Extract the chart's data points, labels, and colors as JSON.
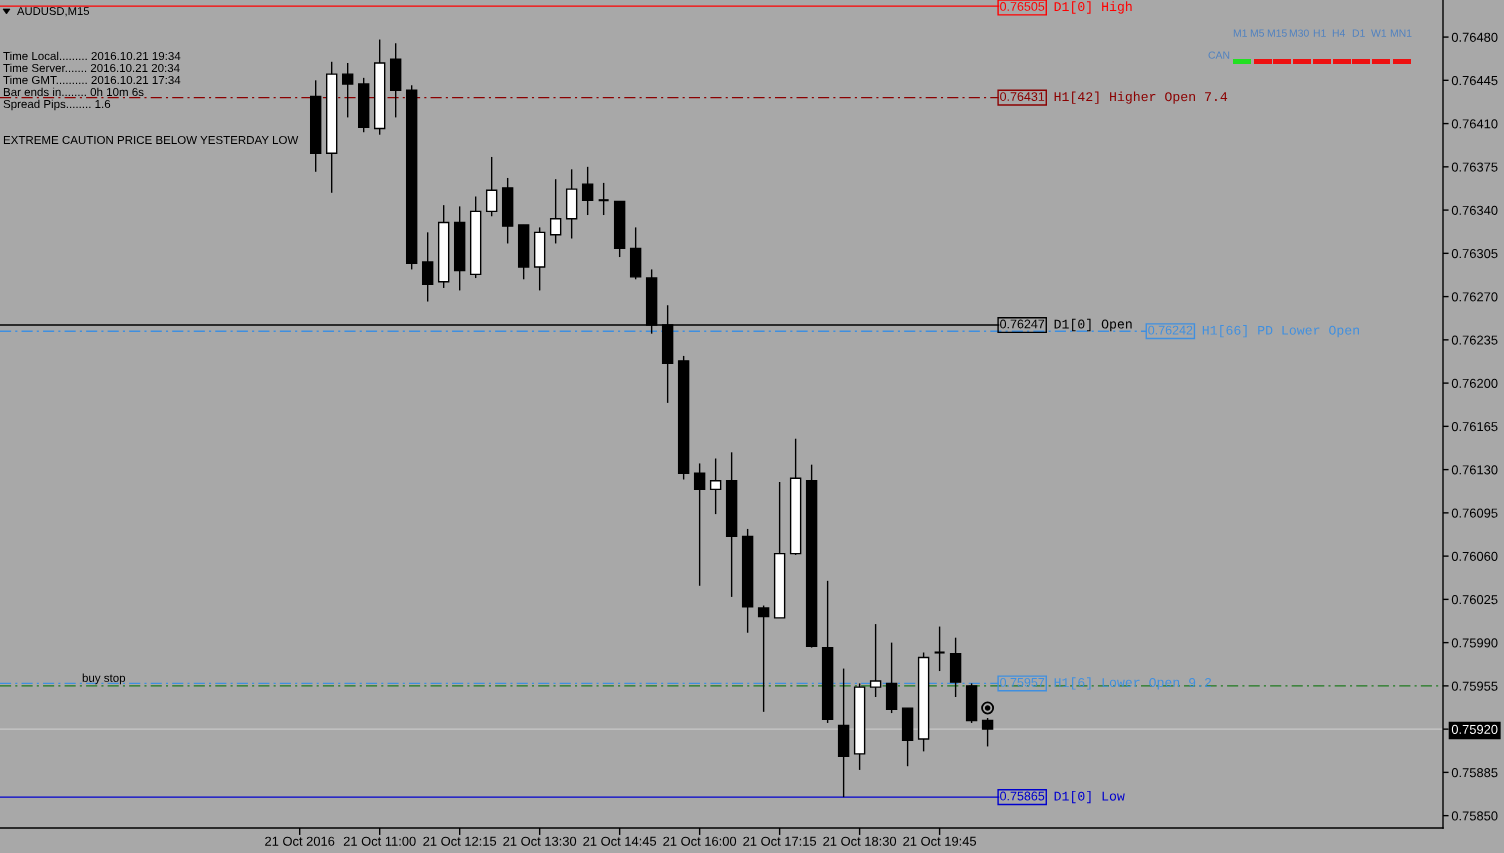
{
  "chart_data": {
    "type": "candlestick",
    "title": "AUDUSD,M15",
    "x": [
      "2016-10-21T10:00",
      "2016-10-21T10:15",
      "2016-10-21T10:30",
      "2016-10-21T10:45",
      "2016-10-21T11:00",
      "2016-10-21T11:15",
      "2016-10-21T11:30",
      "2016-10-21T11:45",
      "2016-10-21T12:00",
      "2016-10-21T12:15",
      "2016-10-21T12:30",
      "2016-10-21T12:45",
      "2016-10-21T13:00",
      "2016-10-21T13:15",
      "2016-10-21T13:30",
      "2016-10-21T13:45",
      "2016-10-21T14:00",
      "2016-10-21T14:15",
      "2016-10-21T14:30",
      "2016-10-21T14:45",
      "2016-10-21T15:00",
      "2016-10-21T15:15",
      "2016-10-21T15:30",
      "2016-10-21T15:45",
      "2016-10-21T16:00",
      "2016-10-21T16:15",
      "2016-10-21T16:30",
      "2016-10-21T16:45",
      "2016-10-21T17:00",
      "2016-10-21T17:15",
      "2016-10-21T17:30",
      "2016-10-21T17:45",
      "2016-10-21T18:00",
      "2016-10-21T18:15",
      "2016-10-21T18:30",
      "2016-10-21T18:45",
      "2016-10-21T19:00",
      "2016-10-21T19:15",
      "2016-10-21T19:30",
      "2016-10-21T19:45",
      "2016-10-21T20:00",
      "2016-10-21T20:15",
      "2016-10-21T20:30"
    ],
    "ohlc": [
      [
        0.76432,
        0.76445,
        0.76371,
        0.76386
      ],
      [
        0.76386,
        0.7646,
        0.76354,
        0.7645
      ],
      [
        0.7645,
        0.76459,
        0.76415,
        0.76442
      ],
      [
        0.76442,
        0.76447,
        0.76403,
        0.76407
      ],
      [
        0.76406,
        0.76478,
        0.76401,
        0.76459
      ],
      [
        0.76462,
        0.76475,
        0.76415,
        0.76437
      ],
      [
        0.76437,
        0.76441,
        0.76292,
        0.76297
      ],
      [
        0.76298,
        0.76322,
        0.76266,
        0.7628
      ],
      [
        0.76282,
        0.76344,
        0.76277,
        0.7633
      ],
      [
        0.7633,
        0.76343,
        0.76275,
        0.76291
      ],
      [
        0.76288,
        0.76351,
        0.76285,
        0.76339
      ],
      [
        0.76339,
        0.76383,
        0.76335,
        0.76356
      ],
      [
        0.76358,
        0.76366,
        0.76313,
        0.76327
      ],
      [
        0.76328,
        0.76328,
        0.76284,
        0.76294
      ],
      [
        0.76294,
        0.76326,
        0.76275,
        0.76322
      ],
      [
        0.7632,
        0.76365,
        0.76313,
        0.76333
      ],
      [
        0.76333,
        0.76373,
        0.76317,
        0.76357
      ],
      [
        0.76361,
        0.76375,
        0.76336,
        0.76348
      ],
      [
        0.76348,
        0.76362,
        0.76336,
        0.76348
      ],
      [
        0.76347,
        0.76347,
        0.76302,
        0.76309
      ],
      [
        0.76309,
        0.76326,
        0.76284,
        0.76286
      ],
      [
        0.76285,
        0.76292,
        0.7624,
        0.76247
      ],
      [
        0.76247,
        0.76263,
        0.76184,
        0.76216
      ],
      [
        0.76218,
        0.76222,
        0.76122,
        0.76127
      ],
      [
        0.76127,
        0.76135,
        0.76036,
        0.76114
      ],
      [
        0.76114,
        0.76139,
        0.76094,
        0.76121
      ],
      [
        0.76121,
        0.76144,
        0.76027,
        0.76076
      ],
      [
        0.76076,
        0.76082,
        0.75998,
        0.76019
      ],
      [
        0.76018,
        0.7602,
        0.75934,
        0.76011
      ],
      [
        0.7601,
        0.7612,
        0.7601,
        0.76062
      ],
      [
        0.76062,
        0.76155,
        0.76061,
        0.76123
      ],
      [
        0.76121,
        0.76134,
        0.75986,
        0.75987
      ],
      [
        0.75986,
        0.7604,
        0.75925,
        0.75928
      ],
      [
        0.75923,
        0.75969,
        0.75865,
        0.75898
      ],
      [
        0.759,
        0.75957,
        0.75887,
        0.75954
      ],
      [
        0.75954,
        0.76005,
        0.75946,
        0.75959
      ],
      [
        0.75957,
        0.7599,
        0.75933,
        0.75936
      ],
      [
        0.75937,
        0.75937,
        0.7589,
        0.75911
      ],
      [
        0.75912,
        0.75982,
        0.75902,
        0.75978
      ],
      [
        0.75982,
        0.76003,
        0.75967,
        0.75982
      ],
      [
        0.75981,
        0.75994,
        0.75946,
        0.75958
      ],
      [
        0.75955,
        0.75957,
        0.75925,
        0.75927
      ],
      [
        0.75927,
        0.75929,
        0.75906,
        0.7592
      ]
    ],
    "color": "#000000",
    "colors": [
      "#000000",
      "#ffffff",
      "#000000",
      "#000000",
      "#ffffff",
      "#000000",
      "#000000",
      "#000000",
      "#ffffff",
      "#000000",
      "#ffffff",
      "#ffffff",
      "#000000",
      "#000000",
      "#ffffff",
      "#ffffff",
      "#ffffff",
      "#000000",
      "#000000",
      "#000000",
      "#000000",
      "#000000",
      "#000000",
      "#000000",
      "#000000",
      "#ffffff",
      "#000000",
      "#000000",
      "#000000",
      "#ffffff",
      "#ffffff",
      "#000000",
      "#000000",
      "#000000",
      "#ffffff",
      "#ffffff",
      "#000000",
      "#000000",
      "#ffffff",
      "#000000",
      "#000000",
      "#000000",
      "#000000"
    ],
    "xlim": [
      "2016-10-21T05:04",
      "2016-10-22T03:37"
    ],
    "xticks": [
      {
        "value": "2016-10-21T09:45",
        "label": "21 Oct 2016"
      },
      {
        "value": "2016-10-21T11:00",
        "label": "21 Oct 11:00"
      },
      {
        "value": "2016-10-21T12:15",
        "label": "21 Oct 12:15"
      },
      {
        "value": "2016-10-21T13:30",
        "label": "21 Oct 13:30"
      },
      {
        "value": "2016-10-21T14:45",
        "label": "21 Oct 14:45"
      },
      {
        "value": "2016-10-21T16:00",
        "label": "21 Oct 16:00"
      },
      {
        "value": "2016-10-21T17:15",
        "label": "21 Oct 17:15"
      },
      {
        "value": "2016-10-21T18:30",
        "label": "21 Oct 18:30"
      },
      {
        "value": "2016-10-21T19:45",
        "label": "21 Oct 19:45"
      }
    ],
    "ylim": [
      0.7584,
      0.7651
    ],
    "yticks": [
      {
        "value": 0.7585,
        "label": "0.75850"
      },
      {
        "value": 0.75885,
        "label": "0.75885"
      },
      {
        "value": 0.7592,
        "label": "0.75920"
      },
      {
        "value": 0.75955,
        "label": "0.75955"
      },
      {
        "value": 0.7599,
        "label": "0.75990"
      },
      {
        "value": 0.76025,
        "label": "0.76025"
      },
      {
        "value": 0.7606,
        "label": "0.76060"
      },
      {
        "value": 0.76095,
        "label": "0.76095"
      },
      {
        "value": 0.7613,
        "label": "0.76130"
      },
      {
        "value": 0.76165,
        "label": "0.76165"
      },
      {
        "value": 0.762,
        "label": "0.76200"
      },
      {
        "value": 0.76235,
        "label": "0.76235"
      },
      {
        "value": 0.7627,
        "label": "0.76270"
      },
      {
        "value": 0.76305,
        "label": "0.76305"
      },
      {
        "value": 0.7634,
        "label": "0.76340"
      },
      {
        "value": 0.76375,
        "label": "0.76375"
      },
      {
        "value": 0.7641,
        "label": "0.76410"
      },
      {
        "value": 0.76445,
        "label": "0.76445"
      },
      {
        "value": 0.7648,
        "label": "0.76480"
      }
    ],
    "ref_lines": [
      {
        "axis": "y",
        "value": 0.76505,
        "label": "0.76505",
        "color": "#ff0000",
        "line_style": "solid"
      },
      {
        "axis": "y",
        "value": 0.76431,
        "label": "0.76431",
        "color": "#8b0000",
        "line_style": "dashdot"
      },
      {
        "axis": "y",
        "value": 0.76247,
        "label": "0.76247",
        "color": "#000000",
        "line_style": "solid"
      },
      {
        "axis": "y",
        "value": 0.76242,
        "label": "0.76242",
        "color": "#3f8fe0",
        "line_style": "dashdot"
      },
      {
        "axis": "y",
        "value": 0.75957,
        "label": "0.75957",
        "color": "#3f8fe0",
        "line_style": "dashdot"
      },
      {
        "axis": "y",
        "value": 0.75955,
        "label": null,
        "color": "#1f7a1f",
        "line_style": "dashdot"
      },
      {
        "axis": "y",
        "value": 0.7592,
        "label": null,
        "color": "#c8c8c8",
        "line_style": "solid"
      },
      {
        "axis": "y",
        "value": 0.75865,
        "label": "0.75865",
        "color": "#0000cd",
        "line_style": "solid"
      }
    ],
    "annotations": [
      "Time Local......... 2016.10.21 19:34",
      "Time Server....... 2016.10.21 20:34",
      "Time GMT.......... 2016.10.21 17:34",
      "Bar ends in........ 0h 10m 6s",
      "Spread Pips........ 1.6",
      "EXTREME CAUTION PRICE BELOW YESTERDAY LOW",
      "CAN",
      "M1",
      "M5",
      "M15",
      "M30",
      "H1",
      "H4",
      "D1",
      "W1",
      "MN1",
      "D1[0] High",
      "H1[42] Higher Open 7.4",
      "D1[0] Open",
      "H1[66] PD Lower Open",
      "H1[6] Lower Open 9.2",
      "D1[0] Low",
      {
        "text": "buy stop",
        "y": 0.75955
      }
    ]
  }
}
